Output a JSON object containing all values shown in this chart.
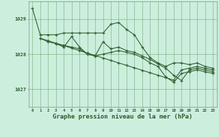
{
  "background_color": "#cceedd",
  "plot_bg_color": "#cceedd",
  "grid_color": "#4a8a4a",
  "line_color": "#2d5a2d",
  "xlabel": "Graphe pression niveau de la mer (hPa)",
  "xlabel_fontsize": 6.5,
  "ylim": [
    1026.5,
    1029.5
  ],
  "yticks": [
    1027,
    1028,
    1029
  ],
  "xlim": [
    -0.5,
    23.5
  ],
  "xticks": [
    0,
    1,
    2,
    3,
    4,
    5,
    6,
    7,
    8,
    9,
    10,
    11,
    12,
    13,
    14,
    15,
    16,
    17,
    18,
    19,
    20,
    21,
    22,
    23
  ],
  "s1_x": [
    0,
    1,
    2,
    3,
    4,
    5,
    6,
    7,
    8,
    9,
    10,
    11,
    12,
    13,
    14,
    15,
    16,
    17,
    18,
    19,
    20,
    21,
    22,
    23
  ],
  "s1_y": [
    1029.3,
    1028.55,
    1028.55,
    1028.55,
    1028.6,
    1028.6,
    1028.6,
    1028.6,
    1028.6,
    1028.6,
    1028.85,
    1028.9,
    1028.7,
    1028.55,
    1028.2,
    1027.9,
    1027.75,
    1027.65,
    1027.75,
    1027.75,
    1027.7,
    1027.75,
    1027.65,
    1027.6
  ],
  "s2_x": [
    1,
    2,
    3,
    4,
    5,
    6,
    7,
    8,
    9,
    10,
    11,
    12,
    13,
    14,
    15,
    16,
    17,
    18,
    19,
    20,
    21,
    22,
    23
  ],
  "s2_y": [
    1028.45,
    1028.35,
    1028.3,
    1028.25,
    1028.2,
    1028.15,
    1028.0,
    1027.95,
    1028.0,
    1028.05,
    1028.1,
    1028.05,
    1028.0,
    1027.9,
    1027.75,
    1027.65,
    1027.35,
    1027.2,
    1027.45,
    1027.5,
    1027.55,
    1027.5,
    1027.45
  ],
  "s3_x": [
    3,
    4,
    5,
    6,
    7,
    8,
    9,
    10,
    11,
    12,
    13,
    14,
    15,
    16,
    17,
    18,
    19,
    20,
    21,
    22,
    23
  ],
  "s3_y": [
    1028.3,
    1028.2,
    1028.5,
    1028.2,
    1028.0,
    1027.95,
    1028.35,
    1028.15,
    1028.2,
    1028.1,
    1028.05,
    1027.95,
    1027.85,
    1027.72,
    1027.6,
    1027.4,
    1027.25,
    1027.55,
    1027.6,
    1027.55,
    1027.5
  ],
  "s4_x": [
    1,
    2,
    3,
    4,
    5,
    6,
    7,
    8,
    9,
    10,
    11,
    12,
    13,
    14,
    15,
    16,
    17,
    18,
    19,
    20,
    21,
    22,
    23
  ],
  "s4_y": [
    1028.45,
    1028.38,
    1028.31,
    1028.24,
    1028.17,
    1028.1,
    1028.03,
    1027.96,
    1027.89,
    1027.82,
    1027.75,
    1027.68,
    1027.61,
    1027.54,
    1027.47,
    1027.4,
    1027.33,
    1027.26,
    1027.55,
    1027.6,
    1027.65,
    1027.6,
    1027.55
  ]
}
